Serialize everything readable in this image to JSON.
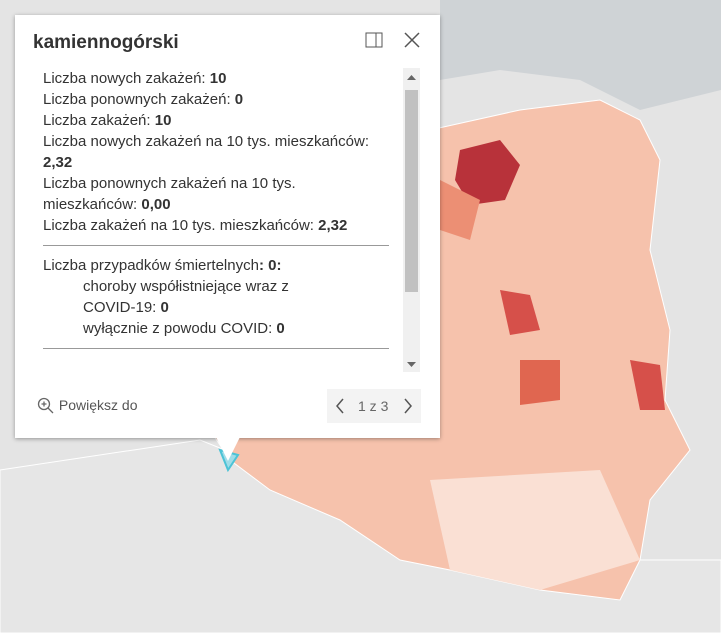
{
  "popup": {
    "title": "kamiennogórski",
    "fields": [
      {
        "label": "Liczba nowych zakażeń:",
        "value": "10"
      },
      {
        "label": "Liczba ponownych zakażeń:",
        "value": "0"
      },
      {
        "label": "Liczba zakażeń:",
        "value": "10"
      },
      {
        "label": "Liczba nowych zakażeń na 10 tys. mieszkańców:",
        "value": "2,32"
      },
      {
        "label": "Liczba ponownych zakażeń na 10 tys. mieszkańców:",
        "value": "0,00"
      },
      {
        "label": "Liczba zakażeń na 10 tys. mieszkańców:",
        "value": "2,32"
      }
    ],
    "deaths": {
      "label": "Liczba przypadków śmiertelnych",
      "value": ": 0:",
      "items": [
        {
          "label": "choroby współistniejące wraz z COVID-19:",
          "value": "0"
        },
        {
          "label": "wyłącznie z powodu COVID:",
          "value": "0"
        }
      ]
    },
    "zoom_label": "Powiększ do",
    "pagination": "1 z 3"
  }
}
